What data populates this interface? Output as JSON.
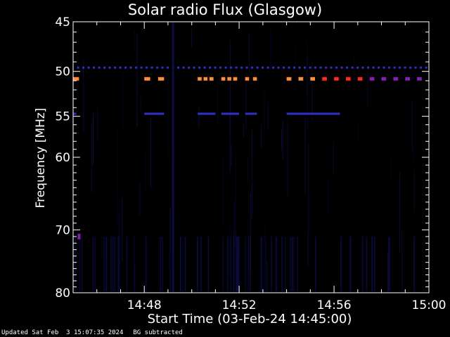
{
  "chart_data": {
    "type": "heatmap",
    "title": "Solar radio Flux (Glasgow)",
    "xlabel": "Start Time (03-Feb-24 14:45:00)",
    "ylabel": "Frequency [MHz]",
    "x_range_minutes": [
      "14:45:00",
      "15:00:00"
    ],
    "y_range_mhz": [
      45,
      80
    ],
    "y_scale": "log",
    "y_inverted": true,
    "x_ticks": [
      "14:48",
      "14:52",
      "14:56",
      "15:00"
    ],
    "y_ticks": [
      45,
      50,
      55,
      60,
      70,
      80
    ],
    "background": "#000000",
    "colors": {
      "frame": "#ffffff",
      "low": "#0d0d4a",
      "mid": "#3030c8",
      "purple": "#8020b0",
      "red": "#ff2a1a",
      "orange": "#ff8c3a",
      "peach": "#ffb070"
    },
    "features": [
      {
        "name": "dotted line",
        "freq_mhz": 49.6,
        "start": "14:45:10",
        "end": "15:00:00",
        "color": "mid"
      },
      {
        "name": "emission band",
        "freq_mhz": 50.8,
        "segments": [
          {
            "start": "14:45:00",
            "end": "14:45:15",
            "color": "orange"
          },
          {
            "start": "14:48:00",
            "end": "14:48:15",
            "color": "orange"
          },
          {
            "start": "14:48:35",
            "end": "14:48:50",
            "color": "orange"
          },
          {
            "start": "14:50:15",
            "end": "14:50:25",
            "color": "orange"
          },
          {
            "start": "14:50:30",
            "end": "14:50:40",
            "color": "orange"
          },
          {
            "start": "14:50:45",
            "end": "14:50:55",
            "color": "orange"
          },
          {
            "start": "14:51:15",
            "end": "14:51:25",
            "color": "orange"
          },
          {
            "start": "14:51:30",
            "end": "14:51:40",
            "color": "orange"
          },
          {
            "start": "14:51:45",
            "end": "14:51:55",
            "color": "orange"
          },
          {
            "start": "14:52:15",
            "end": "14:52:25",
            "color": "orange"
          },
          {
            "start": "14:52:35",
            "end": "14:52:45",
            "color": "orange"
          },
          {
            "start": "14:54:00",
            "end": "14:54:12",
            "color": "orange"
          },
          {
            "start": "14:54:30",
            "end": "14:54:42",
            "color": "orange"
          },
          {
            "start": "14:55:00",
            "end": "14:55:12",
            "color": "orange"
          },
          {
            "start": "14:55:30",
            "end": "14:55:42",
            "color": "red"
          },
          {
            "start": "14:56:00",
            "end": "14:56:12",
            "color": "red"
          },
          {
            "start": "14:56:30",
            "end": "14:56:42",
            "color": "red"
          },
          {
            "start": "14:57:00",
            "end": "14:57:12",
            "color": "red"
          },
          {
            "start": "14:57:30",
            "end": "14:57:42",
            "color": "purple"
          },
          {
            "start": "14:58:00",
            "end": "14:58:12",
            "color": "purple"
          },
          {
            "start": "14:58:30",
            "end": "14:58:42",
            "color": "purple"
          },
          {
            "start": "14:59:00",
            "end": "14:59:12",
            "color": "purple"
          },
          {
            "start": "14:59:30",
            "end": "14:59:42",
            "color": "purple"
          }
        ]
      },
      {
        "name": "second band",
        "freq_mhz": 54.7,
        "segments": [
          {
            "start": "14:45:00",
            "end": "14:45:08",
            "color": "mid"
          },
          {
            "start": "14:48:00",
            "end": "14:48:50",
            "color": "mid"
          },
          {
            "start": "14:50:15",
            "end": "14:51:00",
            "color": "mid"
          },
          {
            "start": "14:51:15",
            "end": "14:52:00",
            "color": "mid"
          },
          {
            "start": "14:52:15",
            "end": "14:52:45",
            "color": "mid"
          },
          {
            "start": "14:54:00",
            "end": "14:56:15",
            "color": "mid"
          }
        ]
      },
      {
        "name": "spot",
        "freq_mhz": 71.0,
        "time": "14:45:15",
        "color": "purple"
      },
      {
        "name": "vertical stripe",
        "time": "14:49:10",
        "freq_range": [
          45,
          80
        ],
        "color": "low"
      }
    ]
  },
  "footer": {
    "updated": "Updated Sat Feb  3 15:07:35 2024",
    "bg_note": "BG subtracted"
  }
}
